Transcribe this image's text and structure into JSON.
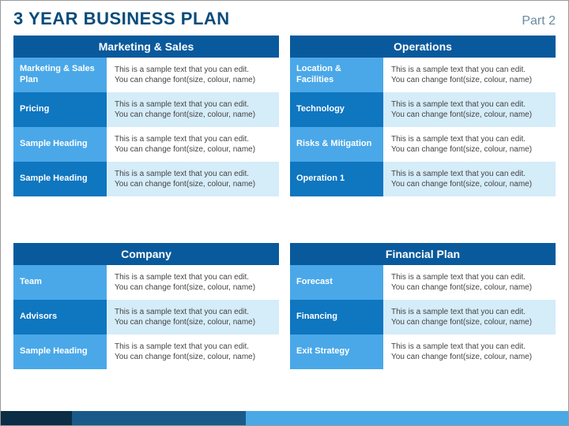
{
  "header": {
    "title": "3 YEAR BUSINESS PLAN",
    "part": "Part 2",
    "title_color": "#0a4b7a",
    "part_color": "#6a8aa3"
  },
  "sample_text": {
    "line1": "This is a sample text that you can edit.",
    "line2": "You can change font(size, colour, name)"
  },
  "colors": {
    "header_bg": "#095a9c",
    "label_light": "#4aa8e8",
    "label_dark": "#0f76c0",
    "desc_light": "#d5ecf9",
    "desc_white": "#ffffff"
  },
  "panels": [
    {
      "title": "Marketing & Sales",
      "rows": [
        {
          "label": "Marketing & Sales Plan"
        },
        {
          "label": "Pricing"
        },
        {
          "label": "Sample Heading"
        },
        {
          "label": "Sample Heading"
        }
      ]
    },
    {
      "title": "Operations",
      "rows": [
        {
          "label": "Location & Facilities"
        },
        {
          "label": "Technology"
        },
        {
          "label": "Risks & Mitigation"
        },
        {
          "label": "Operation 1"
        }
      ]
    },
    {
      "title": "Company",
      "rows": [
        {
          "label": "Team"
        },
        {
          "label": "Advisors"
        },
        {
          "label": "Sample Heading"
        }
      ]
    },
    {
      "title": "Financial Plan",
      "rows": [
        {
          "label": "Forecast"
        },
        {
          "label": "Financing"
        },
        {
          "label": "Exit Strategy"
        }
      ]
    }
  ],
  "footer_colors": {
    "seg1": "#0b2d45",
    "seg2": "#1a5a8a",
    "seg3": "#49a9e6"
  }
}
